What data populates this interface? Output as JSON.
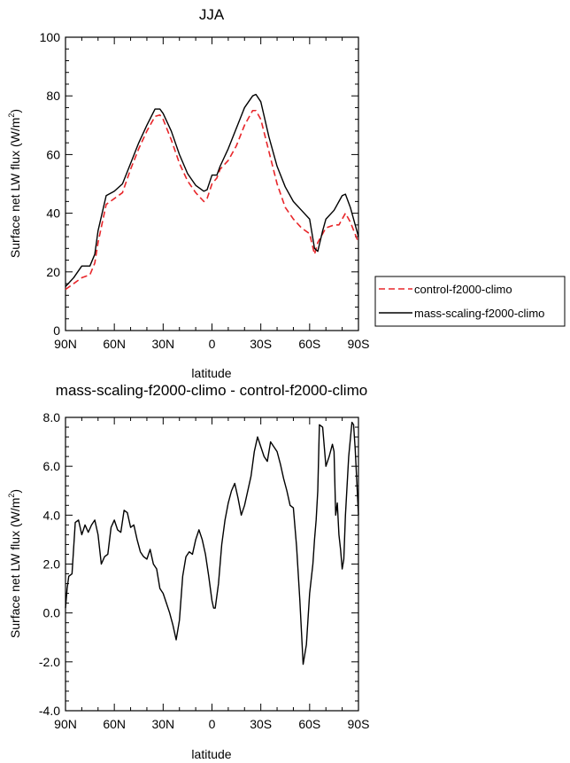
{
  "chart_data": [
    {
      "type": "line",
      "title": "JJA",
      "xlabel": "latitude",
      "ylabel": "Surface net LW flux (W/m",
      "ylabel_sup": "2",
      "ylabel_close": ")",
      "xlim": [
        90,
        -90
      ],
      "ylim": [
        0,
        100
      ],
      "xticks": [
        90,
        60,
        30,
        0,
        -30,
        -60,
        -90
      ],
      "xtick_labels": [
        "90N",
        "60N",
        "30N",
        "0",
        "30S",
        "60S",
        "90S"
      ],
      "yticks": [
        0,
        20,
        40,
        60,
        80,
        100
      ],
      "ytick_labels": [
        "0",
        "20",
        "40",
        "60",
        "80",
        "100"
      ],
      "legend": {
        "placement": "right"
      },
      "series": [
        {
          "name": "control-f2000-climo",
          "color": "#e8262a",
          "dash": "dashed",
          "x": [
            90,
            85,
            80,
            75,
            72,
            70,
            65,
            60,
            55,
            50,
            45,
            40,
            35,
            32,
            30,
            25,
            20,
            15,
            10,
            5,
            3,
            0,
            -3,
            -5,
            -10,
            -15,
            -20,
            -25,
            -27,
            -30,
            -35,
            -40,
            -45,
            -50,
            -55,
            -60,
            -63,
            -65,
            -68,
            -70,
            -75,
            -78,
            -80,
            -82,
            -85,
            -90
          ],
          "y": [
            14,
            16,
            18,
            19,
            23,
            30,
            43,
            45,
            47,
            55,
            62,
            68,
            73,
            73.5,
            72,
            65,
            57,
            51,
            47,
            44,
            45,
            50,
            52,
            55,
            58,
            63,
            70,
            75,
            75,
            72,
            61,
            50,
            42,
            38,
            35,
            33,
            26,
            30,
            33,
            35,
            36,
            36,
            38,
            40,
            37,
            30
          ]
        },
        {
          "name": "mass-scaling-f2000-climo",
          "color": "#000000",
          "dash": "solid",
          "x": [
            90,
            85,
            80,
            75,
            72,
            70,
            65,
            60,
            55,
            50,
            45,
            40,
            35,
            32,
            30,
            25,
            20,
            15,
            10,
            5,
            3,
            0,
            -3,
            -5,
            -10,
            -15,
            -20,
            -25,
            -27,
            -30,
            -35,
            -40,
            -45,
            -50,
            -55,
            -60,
            -63,
            -65,
            -68,
            -70,
            -75,
            -78,
            -80,
            -82,
            -85,
            -90
          ],
          "y": [
            15,
            18,
            22,
            22,
            26,
            34,
            46,
            47.5,
            50,
            57,
            64,
            70,
            75.5,
            75.5,
            74,
            68,
            60,
            53.5,
            49.5,
            47.5,
            48,
            53,
            53,
            56,
            62,
            69,
            76,
            80,
            80.5,
            78,
            66,
            56,
            49,
            44,
            41,
            38,
            28,
            27,
            34,
            38,
            41,
            44,
            46,
            46.5,
            42,
            32
          ]
        }
      ]
    },
    {
      "type": "line",
      "title": "mass-scaling-f2000-climo - control-f2000-climo",
      "xlabel": "latitude",
      "ylabel": "Surface net LW flux (W/m",
      "ylabel_sup": "2",
      "ylabel_close": ")",
      "xlim": [
        90,
        -90
      ],
      "ylim": [
        -4,
        8
      ],
      "xticks": [
        90,
        60,
        30,
        0,
        -30,
        -60,
        -90
      ],
      "xtick_labels": [
        "90N",
        "60N",
        "30N",
        "0",
        "30S",
        "60S",
        "90S"
      ],
      "yticks": [
        -4,
        -2,
        0,
        2,
        4,
        6,
        8
      ],
      "ytick_labels": [
        "-4.0",
        "-2.0",
        "0.0",
        "2.0",
        "4.0",
        "6.0",
        "8.0"
      ],
      "series": [
        {
          "color": "#000000",
          "dash": "solid",
          "x": [
            90,
            89,
            88,
            86,
            84,
            82,
            80,
            78,
            76,
            74,
            72,
            70,
            68,
            66,
            64,
            62,
            60,
            58,
            56,
            54,
            52,
            50,
            48,
            46,
            44,
            42,
            40,
            38,
            36,
            34,
            32,
            30,
            28,
            26,
            24,
            22,
            20,
            18,
            16,
            14,
            12,
            10,
            8,
            6,
            4,
            2,
            0,
            -1,
            -2,
            -4,
            -6,
            -8,
            -10,
            -12,
            -14,
            -16,
            -18,
            -20,
            -22,
            -24,
            -26,
            -28,
            -30,
            -32,
            -34,
            -36,
            -38,
            -40,
            -42,
            -44,
            -46,
            -48,
            -50,
            -52,
            -54,
            -56,
            -58,
            -60,
            -62,
            -63,
            -64,
            -65,
            -66,
            -68,
            -70,
            -72,
            -74,
            -75,
            -76,
            -77,
            -78,
            -79,
            -80,
            -81,
            -82,
            -84,
            -86,
            -87,
            -88,
            -90
          ],
          "y": [
            0.2,
            1.0,
            1.5,
            1.6,
            3.7,
            3.8,
            3.2,
            3.6,
            3.3,
            3.6,
            3.8,
            3.2,
            2.0,
            2.3,
            2.4,
            3.5,
            3.8,
            3.4,
            3.3,
            4.2,
            4.1,
            3.5,
            3.6,
            3.0,
            2.5,
            2.3,
            2.2,
            2.6,
            2.0,
            1.8,
            1.0,
            0.8,
            0.4,
            0.0,
            -0.5,
            -1.1,
            -0.3,
            1.5,
            2.3,
            2.5,
            2.4,
            3.0,
            3.4,
            3.0,
            2.4,
            1.5,
            0.5,
            0.2,
            0.2,
            1.2,
            2.8,
            3.8,
            4.5,
            5.0,
            5.3,
            4.7,
            4.0,
            4.4,
            5.0,
            5.6,
            6.6,
            7.2,
            6.8,
            6.4,
            6.2,
            7.0,
            6.8,
            6.6,
            6.1,
            5.5,
            5.0,
            4.4,
            4.3,
            2.7,
            0.5,
            -2.1,
            -1.3,
            0.8,
            2.0,
            3.0,
            3.8,
            5.0,
            7.7,
            7.6,
            6.0,
            6.4,
            6.9,
            6.6,
            4.0,
            4.5,
            3.2,
            2.6,
            1.8,
            2.2,
            4.0,
            6.4,
            7.8,
            7.7,
            6.7,
            4.0
          ]
        }
      ]
    }
  ]
}
